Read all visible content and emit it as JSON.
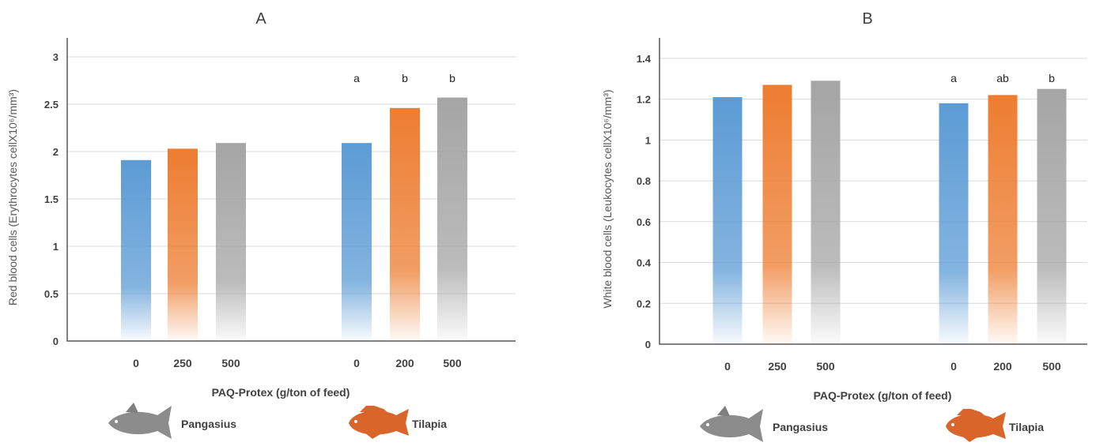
{
  "colors": {
    "blue": "#5b9bd5",
    "orange": "#ed7d31",
    "gray": "#a5a5a5",
    "pangasius": "#7f7f7f",
    "tilapia": "#d9652a"
  },
  "xlabel": "PAQ-Protex (g/ton of feed)",
  "species": [
    "Pangasius",
    "Tilapia"
  ],
  "chart_data": [
    {
      "type": "bar",
      "title": "A",
      "ylabel": "Red blood cells (Erythrocytes cellX10⁶/mm³)",
      "ylim": [
        0,
        3.2
      ],
      "yticks": [
        "0",
        "0.5",
        "1",
        "1.5",
        "2",
        "2.5",
        "3"
      ],
      "xlabel": "PAQ-Protex (g/ton of feed)",
      "groups": [
        {
          "name": "Pangasius",
          "categories": [
            "0",
            "250",
            "500"
          ],
          "values": [
            1.91,
            2.03,
            2.09
          ],
          "labels": [
            "",
            "",
            ""
          ]
        },
        {
          "name": "Tilapia",
          "categories": [
            "0",
            "200",
            "500"
          ],
          "values": [
            2.09,
            2.46,
            2.57
          ],
          "labels": [
            "a",
            "b",
            "b"
          ]
        }
      ]
    },
    {
      "type": "bar",
      "title": "B",
      "ylabel": "White blood cells (Leukocytes cellX10⁶/mm³)",
      "ylim": [
        0,
        1.5
      ],
      "yticks": [
        "0",
        "0.2",
        "0.4",
        "0.6",
        "0.8",
        "1",
        "1.2",
        "1.4"
      ],
      "xlabel": "PAQ-Protex (g/ton of feed)",
      "groups": [
        {
          "name": "Pangasius",
          "categories": [
            "0",
            "250",
            "500"
          ],
          "values": [
            1.21,
            1.27,
            1.29
          ],
          "labels": [
            "",
            "",
            ""
          ]
        },
        {
          "name": "Tilapia",
          "categories": [
            "0",
            "200",
            "500"
          ],
          "values": [
            1.18,
            1.22,
            1.25
          ],
          "labels": [
            "a",
            "ab",
            "b"
          ]
        }
      ]
    }
  ]
}
